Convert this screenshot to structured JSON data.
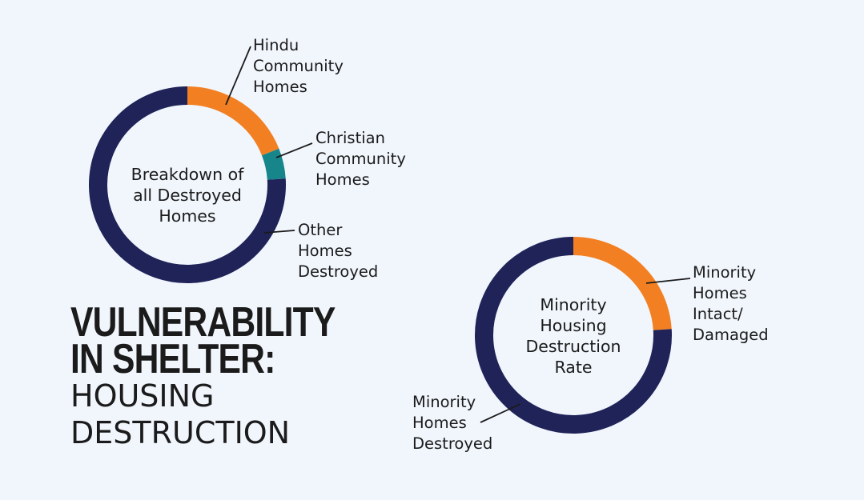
{
  "title": {
    "line1": "VULNERABILITY",
    "line2": "IN SHELTER:",
    "line3": "HOUSING",
    "line4": "DESTRUCTION"
  },
  "colors": {
    "navy": "#1f2358",
    "orange": "#f28023",
    "teal": "#16868a"
  },
  "chart_data": [
    {
      "type": "pie",
      "donut": true,
      "title": "Breakdown of\nall Destroyed\nHomes",
      "slices": [
        {
          "label": "Hindu\nCommunity\nHomes",
          "value": 19,
          "color": "#f28023"
        },
        {
          "label": "Christian\nCommunity\nHomes",
          "value": 5,
          "color": "#16868a"
        },
        {
          "label": "Other\nHomes\nDestroyed",
          "value": 76,
          "color": "#1f2358"
        }
      ]
    },
    {
      "type": "pie",
      "donut": true,
      "title": "Minority\nHousing\nDestruction\nRate",
      "slices": [
        {
          "label": "Minority\nHomes\nIntact/\nDamaged",
          "value": 24,
          "color": "#f28023"
        },
        {
          "label": "Minority\nHomes\nDestroyed",
          "value": 76,
          "color": "#1f2358"
        }
      ]
    }
  ]
}
